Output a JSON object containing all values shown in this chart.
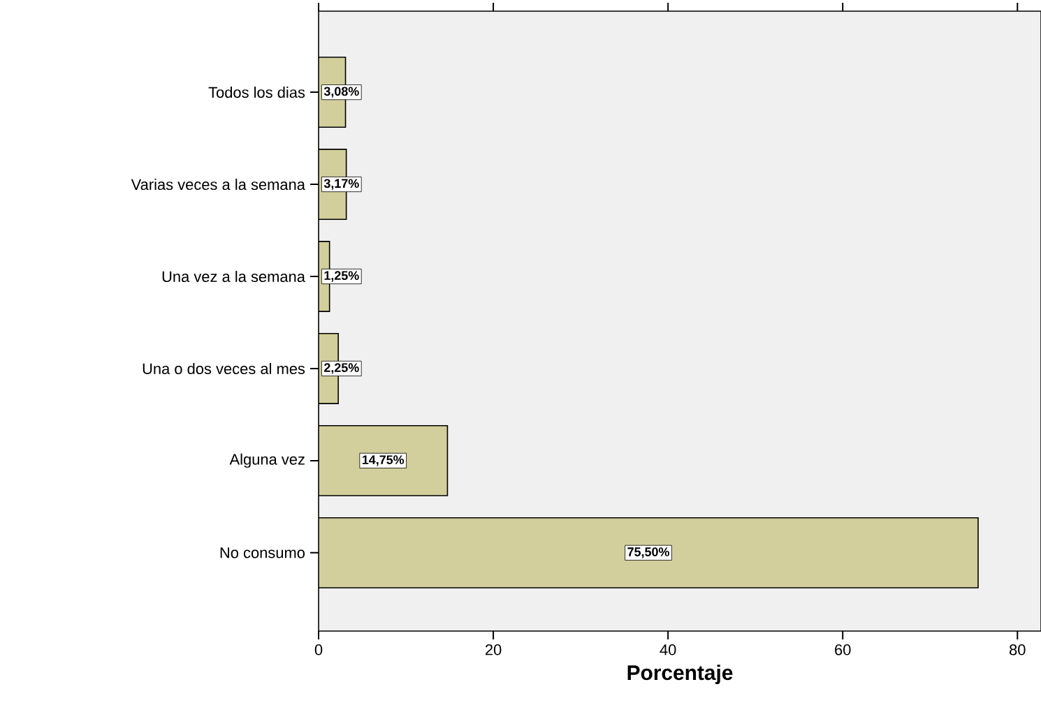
{
  "chart_data": {
    "type": "bar",
    "orientation": "horizontal",
    "xlabel": "Porcentaje",
    "categories": [
      "Todos los dias",
      "Varias veces a la semana",
      "Una vez a la semana",
      "Una o dos veces al mes",
      "Alguna vez",
      "No consumo"
    ],
    "values": [
      3.08,
      3.17,
      1.25,
      2.25,
      14.75,
      75.5
    ],
    "value_labels": [
      "3,08%",
      "3,17%",
      "1,25%",
      "2,25%",
      "14,75%",
      "75,50%"
    ],
    "color": "#d3cf9c",
    "xlim": [
      0,
      82.7
    ],
    "xticks": [
      0,
      20,
      40,
      60,
      80
    ]
  }
}
